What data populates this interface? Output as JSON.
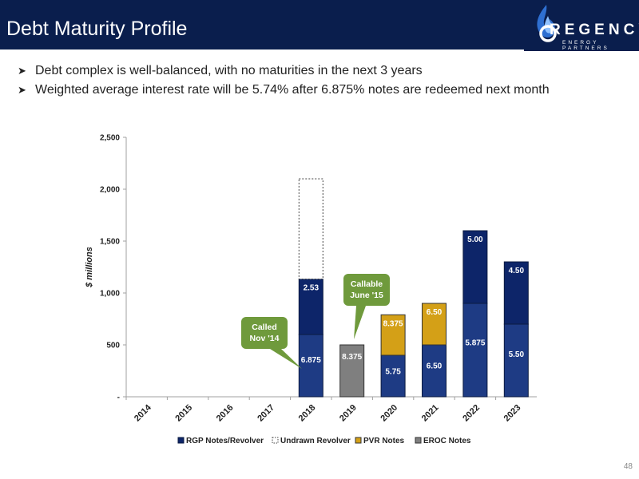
{
  "header": {
    "title": "Debt Maturity Profile",
    "logo_text": "REGENCY",
    "logo_subtext": "ENERGY PARTNERS",
    "logo_icon": "flame-icon"
  },
  "bullets": [
    "Debt complex is well-balanced, with no maturities in the next 3 years",
    "Weighted average interest rate will be 5.74% after 6.875% notes are redeemed next month"
  ],
  "page_number": "48",
  "colors": {
    "navy": "#0a1e4d",
    "rgp": "#0d2569",
    "rgp_shade": "#1e3b84",
    "pvr": "#d4a017",
    "eroc": "#7f7f7f",
    "callout": "#6f9a3c"
  },
  "chart_data": {
    "type": "bar",
    "stacked": true,
    "title": "",
    "xlabel": "",
    "ylabel": "$ millions",
    "ylim": [
      0,
      2500
    ],
    "yticks": [
      0,
      500,
      1000,
      1500,
      2000,
      2500
    ],
    "ytick_labels": [
      "-",
      "500",
      "1,000",
      "1,500",
      "2,000",
      "2,500"
    ],
    "categories": [
      "2014",
      "2015",
      "2016",
      "2017",
      "2018",
      "2019",
      "2020",
      "2021",
      "2022",
      "2023"
    ],
    "grid": false,
    "legend_position": "bottom",
    "legend": [
      "RGP Notes/Revolver",
      "Undrawn Revolver",
      "PVR Notes",
      "EROC Notes"
    ],
    "bars": [
      {
        "category": "2018",
        "segments": [
          {
            "series": "RGP Notes/Revolver",
            "value": 600,
            "label": "6.875"
          },
          {
            "series": "RGP Notes/Revolver",
            "value": 535,
            "label": "2.53"
          },
          {
            "series": "Undrawn Revolver",
            "value": 965,
            "label": ""
          }
        ]
      },
      {
        "category": "2019",
        "segments": [
          {
            "series": "EROC Notes",
            "value": 500,
            "label": "8.375"
          }
        ]
      },
      {
        "category": "2020",
        "segments": [
          {
            "series": "RGP Notes/Revolver",
            "value": 400,
            "label": "5.75"
          },
          {
            "series": "PVR Notes",
            "value": 390,
            "label": "8.375"
          }
        ]
      },
      {
        "category": "2021",
        "segments": [
          {
            "series": "RGP Notes/Revolver",
            "value": 500,
            "label": "6.50"
          },
          {
            "series": "PVR Notes",
            "value": 400,
            "label": "6.50"
          }
        ]
      },
      {
        "category": "2022",
        "segments": [
          {
            "series": "RGP Notes/Revolver",
            "value": 900,
            "label": "5.875"
          },
          {
            "series": "RGP Notes/Revolver",
            "value": 700,
            "label": "5.00"
          }
        ]
      },
      {
        "category": "2023",
        "segments": [
          {
            "series": "RGP Notes/Revolver",
            "value": 700,
            "label": "5.50"
          },
          {
            "series": "RGP Notes/Revolver",
            "value": 600,
            "label": "4.50"
          }
        ]
      }
    ],
    "annotations": [
      {
        "lines": [
          "Called",
          "Nov '14"
        ],
        "category": "2018"
      },
      {
        "lines": [
          "Callable",
          "June '15"
        ],
        "category": "2019"
      }
    ]
  }
}
